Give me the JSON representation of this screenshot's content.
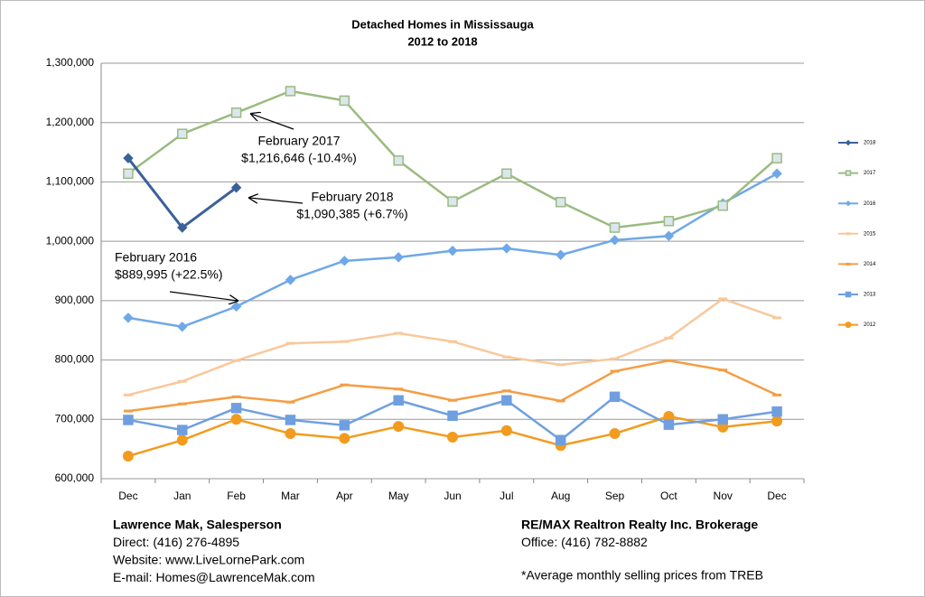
{
  "chart_data": {
    "type": "line",
    "title": "Detached Homes in Mississauga",
    "subtitle": "2012 to 2018",
    "categories": [
      "Dec",
      "Jan",
      "Feb",
      "Mar",
      "Apr",
      "May",
      "Jun",
      "Jul",
      "Aug",
      "Sep",
      "Oct",
      "Nov",
      "Dec"
    ],
    "ylim": [
      600000,
      1300000
    ],
    "yticks": [
      {
        "value": 600000,
        "label": "600,000"
      },
      {
        "value": 700000,
        "label": "700,000"
      },
      {
        "value": 800000,
        "label": "800,000"
      },
      {
        "value": 900000,
        "label": "900,000"
      },
      {
        "value": 1000000,
        "label": "1,000,000"
      },
      {
        "value": 1100000,
        "label": "1,100,000"
      },
      {
        "value": 1200000,
        "label": "1,200,000"
      },
      {
        "value": 1300000,
        "label": "1,300,000"
      }
    ],
    "grid": true,
    "legend": "right",
    "series": [
      {
        "name": "2018",
        "color": "#3b6199",
        "marker": "diamond",
        "values": [
          1140000,
          1023000,
          1090385,
          null,
          null,
          null,
          null,
          null,
          null,
          null,
          null,
          null,
          null
        ]
      },
      {
        "name": "2017",
        "color": "#9bbb80",
        "marker": "square",
        "values": [
          1114000,
          1181000,
          1216646,
          1253000,
          1237000,
          1136000,
          1067000,
          1114000,
          1066000,
          1023000,
          1034000,
          1060000,
          1140000
        ]
      },
      {
        "name": "2016",
        "color": "#6fa8e8",
        "marker": "diamond",
        "values": [
          871000,
          856000,
          889995,
          935000,
          967000,
          973000,
          984000,
          988000,
          977000,
          1002000,
          1009000,
          1064000,
          1114000
        ]
      },
      {
        "name": "2015",
        "color": "#f9c89b",
        "marker": "dash",
        "values": [
          741000,
          764000,
          799000,
          828000,
          831000,
          845000,
          831000,
          805000,
          792000,
          802000,
          837000,
          903000,
          871000
        ]
      },
      {
        "name": "2014",
        "color": "#f59d45",
        "marker": "dash",
        "values": [
          714000,
          726000,
          738000,
          729000,
          758000,
          751000,
          732000,
          748000,
          731000,
          781000,
          799000,
          783000,
          741000
        ]
      },
      {
        "name": "2013",
        "color": "#6f9fe0",
        "marker": "square",
        "values": [
          699000,
          682000,
          719000,
          699000,
          690000,
          732000,
          706000,
          732000,
          665000,
          738000,
          691000,
          700000,
          713000
        ]
      },
      {
        "name": "2012",
        "color": "#f29b1e",
        "marker": "circle",
        "values": [
          638000,
          665000,
          700000,
          676000,
          668000,
          688000,
          670000,
          681000,
          656000,
          676000,
          705000,
          687000,
          697000
        ]
      }
    ],
    "annotations": [
      {
        "lines": [
          "February 2017",
          "$1,216,646 (-10.4%)"
        ]
      },
      {
        "lines": [
          "February 2018",
          "$1,090,385 (+6.7%)"
        ]
      },
      {
        "lines": [
          "February 2016",
          "$889,995 (+22.5%)"
        ]
      }
    ]
  },
  "footer": {
    "left": [
      "Lawrence Mak, Salesperson",
      "Direct:  (416) 276-4895",
      "Website:  www.LiveLornePark.com",
      "E-mail:  Homes@LawrenceMak.com"
    ],
    "right": [
      "RE/MAX Realtron Realty Inc. Brokerage",
      "Office: (416) 782-8882"
    ],
    "note": "*Average monthly selling prices from TREB"
  }
}
